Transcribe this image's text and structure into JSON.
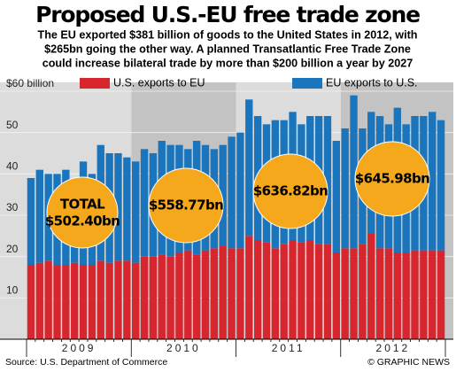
{
  "chart_data": {
    "type": "stacked_bar",
    "title": "Proposed U.S.-EU free trade zone",
    "subtitle": [
      "The EU exported $381 billion of goods to the United States in 2012, with",
      "$265bn going the other way. A planned Transatlantic Free Trade Zone",
      "could increase bilateral trade by more than $200 billion a year by 2027"
    ],
    "categories": [
      null,
      null,
      null,
      null,
      null,
      null,
      null,
      null,
      null,
      null,
      null,
      null,
      null,
      null,
      null,
      null,
      null,
      null,
      null,
      null,
      null,
      null,
      null,
      null,
      null,
      null,
      null,
      null,
      null,
      null,
      null,
      null,
      null,
      null,
      null,
      null,
      null,
      null,
      null,
      null,
      null,
      null,
      null,
      null,
      null,
      null,
      null,
      null
    ],
    "x_groups": [
      "2009",
      "2010",
      "2011",
      "2012"
    ],
    "series": [
      {
        "name": "U.S. exports to EU",
        "color": "#d8262e",
        "values": [
          18,
          18.5,
          19,
          18,
          18,
          18.5,
          18,
          18,
          19,
          18.5,
          19,
          19,
          18.5,
          20,
          20,
          20.5,
          20,
          21,
          21.5,
          20.5,
          21.5,
          22,
          22.5,
          22,
          22,
          25,
          24,
          23.5,
          22,
          23,
          24,
          23.5,
          24,
          23,
          23,
          21,
          22,
          22,
          23,
          25.5,
          22,
          22,
          21,
          21,
          21.5,
          21.5,
          21.5,
          21.5
        ]
      },
      {
        "name": "EU exports to U.S.",
        "color": "#1b75bc",
        "values": [
          21,
          22.5,
          21,
          22,
          23,
          19.5,
          25,
          22,
          28,
          26.5,
          26,
          25,
          24.5,
          26,
          25,
          27.5,
          27,
          26,
          24.5,
          27.5,
          25.5,
          24,
          24.5,
          27,
          28,
          33,
          30,
          28.5,
          31,
          30,
          31,
          28.5,
          30,
          31,
          31,
          27,
          29,
          37,
          28,
          29.5,
          32,
          30,
          35,
          31,
          32.5,
          32.5,
          33.5,
          31.5
        ]
      }
    ],
    "ylim": [
      0,
      60
    ],
    "yticks": [
      10,
      20,
      30,
      40,
      50,
      {
        "value": 60,
        "label": "$60 billion"
      }
    ],
    "grid": true,
    "annotations": [
      {
        "prefix": "TOTAL",
        "text": "$502.40bn"
      },
      {
        "text": "$558.77bn"
      },
      {
        "text": "$636.82bn"
      },
      {
        "text": "$645.98bn"
      }
    ],
    "source": "Source: U.S. Department of Commerce",
    "credit": "© GRAPHIC NEWS"
  }
}
